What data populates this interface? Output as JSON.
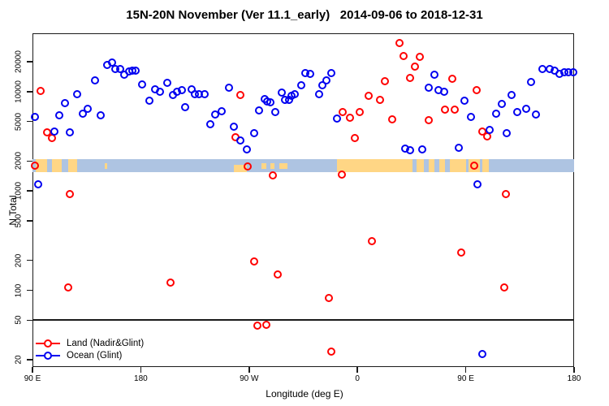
{
  "title": "15N-20N November (Ver 11.1_early)   2014-09-06 to 2018-12-31",
  "axes": {
    "x": {
      "label": "Longitude (deg E)",
      "ticks": [
        {
          "deg": 0,
          "label": "90 E"
        },
        {
          "deg": 90,
          "label": "180"
        },
        {
          "deg": 180,
          "label": "90 W"
        },
        {
          "deg": 270,
          "label": "0"
        },
        {
          "deg": 360,
          "label": "90 E"
        },
        {
          "deg": 450,
          "label": "180"
        }
      ]
    },
    "y": {
      "label": "N Total",
      "scale": "log",
      "ticks": [
        20,
        50,
        100,
        200,
        500,
        1000,
        2000,
        5000,
        10000,
        20000
      ]
    }
  },
  "legend": [
    {
      "label": "Land (Nadir&Glint)",
      "color": "#ff0000"
    },
    {
      "label": "Ocean (Glint)",
      "color": "#0000f0"
    }
  ],
  "reference_line": {
    "value": 50,
    "color": "#1a1a1a"
  },
  "map_band": {
    "top_value": 2100,
    "bottom_value": 1560,
    "ocean_color": "#aec4e2",
    "land_color": "#ffd685",
    "land_segments_deg": [
      {
        "from": 3,
        "to": 12,
        "part": "full"
      },
      {
        "from": 16,
        "to": 24,
        "part": "full"
      },
      {
        "from": 30,
        "to": 37,
        "part": "full"
      },
      {
        "from": 60,
        "to": 62,
        "part": "mid"
      },
      {
        "from": 167,
        "to": 178,
        "part": "bottom"
      },
      {
        "from": 190,
        "to": 194,
        "part": "mid"
      },
      {
        "from": 198,
        "to": 201,
        "part": "mid"
      },
      {
        "from": 205,
        "to": 212,
        "part": "mid"
      },
      {
        "from": 253,
        "to": 316,
        "part": "full"
      },
      {
        "from": 319,
        "to": 325,
        "part": "full"
      },
      {
        "from": 329,
        "to": 334,
        "part": "full"
      },
      {
        "from": 338,
        "to": 343,
        "part": "full"
      },
      {
        "from": 347,
        "to": 360,
        "part": "full"
      },
      {
        "from": 362,
        "to": 372,
        "part": "full"
      },
      {
        "from": 374,
        "to": 379,
        "part": "full"
      }
    ]
  },
  "chart_data": {
    "type": "scatter",
    "title": "15N-20N November (Ver 11.1_early)   2014-09-06 to 2018-12-31",
    "xlabel": "Longitude (deg E)",
    "ylabel": "N Total",
    "x_unit": "degrees east of 90E (axis wraps 450 deg)",
    "x_range": [
      0,
      450
    ],
    "y_scale": "log",
    "ylim": [
      17,
      38000
    ],
    "legend_position": "bottom-left",
    "series": [
      {
        "name": "Land (Nadir&Glint)",
        "color": "#ff0000",
        "points": [
          [
            2,
            1800
          ],
          [
            7,
            10200
          ],
          [
            12,
            3900
          ],
          [
            16,
            3400
          ],
          [
            31,
            930
          ],
          [
            30,
            107
          ],
          [
            115,
            120
          ],
          [
            169,
            3500
          ],
          [
            173,
            9300
          ],
          [
            179,
            1780
          ],
          [
            184,
            195
          ],
          [
            187,
            44
          ],
          [
            194,
            45
          ],
          [
            200,
            1430
          ],
          [
            204,
            145
          ],
          [
            246,
            84
          ],
          [
            248,
            24
          ],
          [
            257,
            1470
          ],
          [
            258,
            6200
          ],
          [
            264,
            5500
          ],
          [
            268,
            3400
          ],
          [
            272,
            6200
          ],
          [
            279,
            9000
          ],
          [
            282,
            310
          ],
          [
            289,
            8200
          ],
          [
            293,
            12800
          ],
          [
            299,
            5300
          ],
          [
            305,
            31000
          ],
          [
            308,
            23000
          ],
          [
            314,
            13700
          ],
          [
            318,
            17800
          ],
          [
            322,
            22500
          ],
          [
            329,
            5200
          ],
          [
            343,
            6600
          ],
          [
            349,
            13600
          ],
          [
            351,
            6600
          ],
          [
            356,
            240
          ],
          [
            367,
            1800
          ],
          [
            369,
            10400
          ],
          [
            374,
            3970
          ],
          [
            378,
            3540
          ],
          [
            393,
            930
          ],
          [
            392,
            107
          ]
        ]
      },
      {
        "name": "Ocean (Glint)",
        "color": "#0000f0",
        "points": [
          [
            2,
            5600
          ],
          [
            5,
            1170
          ],
          [
            18,
            3950
          ],
          [
            22,
            5800
          ],
          [
            27,
            7700
          ],
          [
            31,
            3900
          ],
          [
            37,
            9500
          ],
          [
            42,
            6000
          ],
          [
            46,
            6700
          ],
          [
            52,
            13000
          ],
          [
            57,
            5800
          ],
          [
            62,
            18500
          ],
          [
            66,
            19500
          ],
          [
            69,
            17000
          ],
          [
            73,
            16800
          ],
          [
            76,
            14800
          ],
          [
            80,
            16000
          ],
          [
            83,
            16300
          ],
          [
            86,
            16300
          ],
          [
            91,
            11800
          ],
          [
            97,
            8100
          ],
          [
            102,
            10500
          ],
          [
            106,
            10000
          ],
          [
            112,
            12300
          ],
          [
            117,
            9300
          ],
          [
            120,
            9900
          ],
          [
            124,
            10300
          ],
          [
            127,
            7000
          ],
          [
            132,
            10500
          ],
          [
            135,
            9500
          ],
          [
            138,
            9400
          ],
          [
            143,
            9400
          ],
          [
            148,
            4700
          ],
          [
            152,
            5900
          ],
          [
            157,
            6400
          ],
          [
            163,
            11000
          ],
          [
            167,
            4400
          ],
          [
            173,
            3200
          ],
          [
            178,
            2600
          ],
          [
            184,
            3800
          ],
          [
            188,
            6500
          ],
          [
            193,
            8500
          ],
          [
            195,
            7900
          ],
          [
            198,
            7800
          ],
          [
            202,
            6200
          ],
          [
            207,
            9700
          ],
          [
            210,
            8200
          ],
          [
            213,
            8300
          ],
          [
            215,
            9100
          ],
          [
            218,
            9500
          ],
          [
            223,
            11500
          ],
          [
            227,
            15500
          ],
          [
            231,
            15200
          ],
          [
            238,
            9500
          ],
          [
            241,
            11700
          ],
          [
            244,
            13000
          ],
          [
            248,
            15500
          ],
          [
            253,
            5400
          ],
          [
            310,
            2650
          ],
          [
            314,
            2550
          ],
          [
            324,
            2600
          ],
          [
            329,
            11000
          ],
          [
            334,
            14700
          ],
          [
            337,
            10400
          ],
          [
            342,
            9900
          ],
          [
            354,
            2700
          ],
          [
            359,
            8100
          ],
          [
            364,
            5550
          ],
          [
            370,
            1170
          ],
          [
            374,
            23
          ],
          [
            380,
            4150
          ],
          [
            385,
            6000
          ],
          [
            390,
            7500
          ],
          [
            394,
            3800
          ],
          [
            398,
            9300
          ],
          [
            403,
            6200
          ],
          [
            410,
            6700
          ],
          [
            414,
            12600
          ],
          [
            418,
            5900
          ],
          [
            424,
            16800
          ],
          [
            430,
            17000
          ],
          [
            434,
            16400
          ],
          [
            438,
            15000
          ],
          [
            442,
            15600
          ],
          [
            445,
            15800
          ],
          [
            449,
            15600
          ]
        ]
      }
    ]
  }
}
